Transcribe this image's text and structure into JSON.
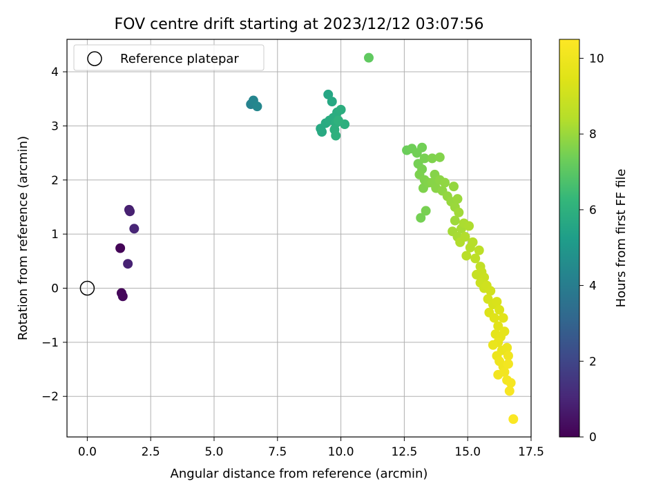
{
  "chart_data": {
    "type": "scatter",
    "title": "FOV centre drift starting at 2023/12/12 03:07:56",
    "xlabel": "Angular distance from reference (arcmin)",
    "ylabel": "Rotation from reference (arcmin)",
    "xlim": [
      -0.8,
      17.5
    ],
    "ylim": [
      -2.75,
      4.6
    ],
    "xticks": [
      0.0,
      2.5,
      5.0,
      7.5,
      10.0,
      12.5,
      15.0,
      17.5
    ],
    "xtick_labels": [
      "0.0",
      "2.5",
      "5.0",
      "7.5",
      "10.0",
      "12.5",
      "15.0",
      "17.5"
    ],
    "yticks": [
      -2,
      -1,
      0,
      1,
      2,
      3,
      4
    ],
    "ytick_labels": [
      "−2",
      "−1",
      "0",
      "1",
      "2",
      "3",
      "4"
    ],
    "grid": true,
    "legend": {
      "placement": "top-left",
      "entries": [
        "Reference platepar"
      ]
    },
    "reference_point": {
      "name": "Reference platepar",
      "x": 0.0,
      "y": 0.0
    },
    "colormap": "viridis",
    "colorbar": {
      "label": "Hours from first FF file",
      "range": [
        0,
        10.5
      ],
      "ticks": [
        0,
        2,
        4,
        6,
        8,
        10
      ],
      "tick_labels": [
        "0",
        "2",
        "4",
        "6",
        "8",
        "10"
      ]
    },
    "series": [
      {
        "points": [
          [
            1.3,
            0.74,
            0.1
          ],
          [
            1.35,
            -0.09,
            0.15
          ],
          [
            1.4,
            -0.15,
            0.2
          ],
          [
            1.65,
            1.45,
            0.8
          ],
          [
            1.68,
            1.42,
            0.85
          ],
          [
            1.6,
            0.45,
            0.9
          ],
          [
            1.85,
            1.1,
            1.0
          ],
          [
            6.45,
            3.4,
            4.2
          ],
          [
            6.55,
            3.47,
            4.3
          ],
          [
            6.7,
            3.36,
            4.4
          ],
          [
            9.5,
            3.58,
            5.6
          ],
          [
            9.65,
            3.45,
            5.65
          ],
          [
            9.2,
            2.95,
            5.7
          ],
          [
            9.25,
            2.89,
            5.72
          ],
          [
            9.4,
            3.05,
            5.75
          ],
          [
            9.55,
            3.1,
            5.8
          ],
          [
            9.7,
            3.15,
            5.82
          ],
          [
            9.85,
            3.25,
            5.85
          ],
          [
            10.0,
            3.3,
            5.9
          ],
          [
            9.8,
            3.05,
            5.92
          ],
          [
            10.15,
            3.03,
            5.95
          ],
          [
            9.75,
            2.93,
            5.97
          ],
          [
            9.8,
            2.82,
            6.0
          ],
          [
            9.9,
            3.1,
            6.05
          ],
          [
            11.1,
            4.26,
            7.1
          ],
          [
            12.6,
            2.55,
            7.3
          ],
          [
            12.8,
            2.58,
            7.35
          ],
          [
            13.0,
            2.5,
            7.4
          ],
          [
            13.2,
            2.6,
            7.4
          ],
          [
            13.05,
            2.3,
            7.45
          ],
          [
            13.2,
            2.2,
            7.5
          ],
          [
            13.3,
            2.4,
            7.5
          ],
          [
            13.1,
            2.1,
            7.55
          ],
          [
            13.3,
            2.0,
            7.6
          ],
          [
            13.25,
            1.85,
            7.6
          ],
          [
            13.45,
            1.95,
            7.65
          ],
          [
            13.6,
            2.4,
            7.6
          ],
          [
            13.9,
            2.42,
            7.65
          ],
          [
            13.7,
            2.1,
            7.7
          ],
          [
            13.6,
            1.95,
            7.72
          ],
          [
            13.75,
            1.85,
            7.75
          ],
          [
            13.9,
            2.0,
            7.8
          ],
          [
            14.0,
            1.8,
            7.82
          ],
          [
            14.1,
            1.95,
            7.85
          ],
          [
            14.2,
            1.7,
            7.9
          ],
          [
            14.35,
            1.6,
            7.95
          ],
          [
            14.5,
            1.5,
            8.0
          ],
          [
            14.6,
            1.65,
            8.0
          ],
          [
            14.45,
            1.88,
            7.9
          ],
          [
            13.35,
            1.43,
            7.5
          ],
          [
            13.15,
            1.3,
            7.45
          ],
          [
            14.5,
            1.25,
            8.05
          ],
          [
            14.65,
            1.4,
            8.1
          ],
          [
            14.4,
            1.05,
            8.15
          ],
          [
            14.6,
            0.95,
            8.2
          ],
          [
            14.75,
            1.1,
            8.2
          ],
          [
            14.85,
            1.2,
            8.25
          ],
          [
            15.05,
            1.15,
            8.3
          ],
          [
            14.7,
            0.85,
            8.35
          ],
          [
            14.9,
            0.95,
            8.35
          ],
          [
            15.1,
            0.75,
            8.4
          ],
          [
            15.2,
            0.85,
            8.45
          ],
          [
            14.95,
            0.6,
            8.5
          ],
          [
            15.3,
            0.55,
            8.6
          ],
          [
            15.45,
            0.7,
            8.6
          ],
          [
            15.5,
            0.4,
            8.7
          ],
          [
            15.35,
            0.25,
            8.8
          ],
          [
            15.55,
            0.3,
            8.85
          ],
          [
            15.65,
            0.2,
            8.9
          ],
          [
            15.5,
            0.1,
            8.95
          ],
          [
            15.65,
            0.0,
            9.0
          ],
          [
            15.75,
            0.05,
            9.05
          ],
          [
            15.9,
            -0.05,
            9.1
          ],
          [
            15.8,
            -0.2,
            9.2
          ],
          [
            16.0,
            -0.3,
            9.25
          ],
          [
            16.15,
            -0.25,
            9.3
          ],
          [
            16.25,
            -0.4,
            9.35
          ],
          [
            15.85,
            -0.45,
            9.4
          ],
          [
            16.05,
            -0.55,
            9.5
          ],
          [
            16.2,
            -0.7,
            9.55
          ],
          [
            16.4,
            -0.55,
            9.55
          ],
          [
            16.1,
            -0.85,
            9.65
          ],
          [
            16.3,
            -0.9,
            9.7
          ],
          [
            16.45,
            -0.8,
            9.7
          ],
          [
            16.2,
            -1.0,
            9.8
          ],
          [
            16.0,
            -1.05,
            9.85
          ],
          [
            16.35,
            -1.15,
            9.85
          ],
          [
            16.15,
            -1.25,
            9.9
          ],
          [
            16.55,
            -1.1,
            9.9
          ],
          [
            16.25,
            -1.35,
            10.0
          ],
          [
            16.4,
            -1.45,
            10.0
          ],
          [
            16.6,
            -1.25,
            10.05
          ],
          [
            16.2,
            -1.6,
            10.1
          ],
          [
            16.45,
            -1.55,
            10.1
          ],
          [
            16.6,
            -1.4,
            10.15
          ],
          [
            16.55,
            -1.7,
            10.2
          ],
          [
            16.7,
            -1.75,
            10.25
          ],
          [
            16.65,
            -1.9,
            10.3
          ],
          [
            16.8,
            -2.42,
            10.4
          ]
        ]
      }
    ]
  }
}
